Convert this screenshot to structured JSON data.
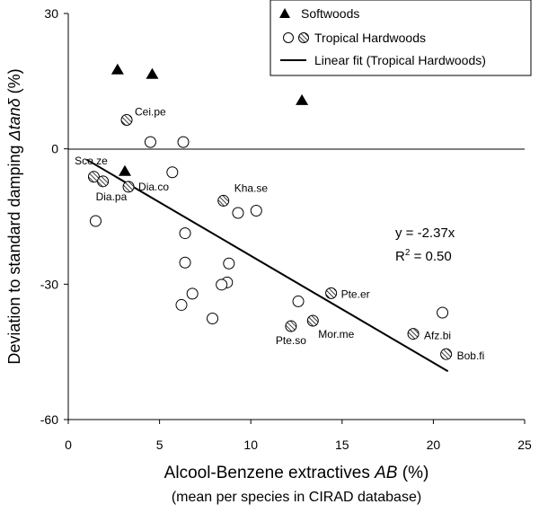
{
  "chart_data": {
    "type": "scatter",
    "xlabel": "Alcool-Benzene extractives AB (%)",
    "xlabel_parts": {
      "before": "Alcool-Benzene extractives ",
      "italic": "AB",
      "after": " (%)"
    },
    "xlabel_sub": "(mean per species in CIRAD database)",
    "ylabel": "Deviation to standard damping Δtanδ (%)",
    "ylabel_parts": {
      "before": "Deviation to standard damping ",
      "italic": "Δtanδ",
      "after": " (%)"
    },
    "xlim": [
      0,
      25
    ],
    "ylim": [
      -60,
      30
    ],
    "xticks": [
      "0",
      "5",
      "10",
      "15",
      "20",
      "25"
    ],
    "yticks": [
      "30",
      "0",
      "-30",
      "-60"
    ],
    "grid": false,
    "legend_position": "top-right",
    "legend": [
      "Softwoods",
      "Tropical Hardwoods",
      "Linear fit (Tropical Hardwoods)"
    ],
    "series": [
      {
        "name": "Softwoods",
        "marker": "triangle",
        "points": [
          {
            "x": 2.7,
            "y": 17.5
          },
          {
            "x": 4.6,
            "y": 16.5
          },
          {
            "x": 12.8,
            "y": 10.7
          },
          {
            "x": 3.1,
            "y": -5.0
          }
        ]
      },
      {
        "name": "Tropical Hardwoods",
        "marker": "circle",
        "points": [
          {
            "x": 4.5,
            "y": 1.5
          },
          {
            "x": 6.3,
            "y": 1.5
          },
          {
            "x": 5.7,
            "y": -5.2
          },
          {
            "x": 1.5,
            "y": -16.0
          },
          {
            "x": 6.4,
            "y": -18.7
          },
          {
            "x": 9.3,
            "y": -14.2
          },
          {
            "x": 10.3,
            "y": -13.7
          },
          {
            "x": 6.4,
            "y": -25.2
          },
          {
            "x": 8.8,
            "y": -25.4
          },
          {
            "x": 8.7,
            "y": -29.6
          },
          {
            "x": 8.4,
            "y": -30.1
          },
          {
            "x": 6.8,
            "y": -32.1
          },
          {
            "x": 6.2,
            "y": -34.6
          },
          {
            "x": 7.9,
            "y": -37.6
          },
          {
            "x": 12.6,
            "y": -33.8
          },
          {
            "x": 20.5,
            "y": -36.3
          }
        ]
      },
      {
        "name": "Tropical Hardwoods",
        "marker": "hatched-circle",
        "points": [
          {
            "x": 3.2,
            "y": 6.4,
            "label": "Cei.pe"
          },
          {
            "x": 1.4,
            "y": -6.2,
            "label": "Sco.ze"
          },
          {
            "x": 1.9,
            "y": -7.2,
            "label": "Dia.pa"
          },
          {
            "x": 3.3,
            "y": -8.4,
            "label": "Dia.co"
          },
          {
            "x": 8.5,
            "y": -11.5,
            "label": "Kha.se"
          },
          {
            "x": 14.4,
            "y": -32.0,
            "label": "Pte.er"
          },
          {
            "x": 12.2,
            "y": -39.3,
            "label": "Pte.so"
          },
          {
            "x": 13.4,
            "y": -38.1,
            "label": "Mor.me"
          },
          {
            "x": 18.9,
            "y": -41.0,
            "label": "Afz.bi"
          },
          {
            "x": 20.7,
            "y": -45.5,
            "label": "Bob.fi"
          }
        ]
      }
    ],
    "fit_line": {
      "name": "Linear fit (Tropical Hardwoods)",
      "equation": "y = -2.37x",
      "r2_base": "R",
      "r2_sup": "2",
      "r2_rest": " = 0.50",
      "x_range": [
        1.0,
        20.8
      ],
      "slope": -2.37
    }
  }
}
